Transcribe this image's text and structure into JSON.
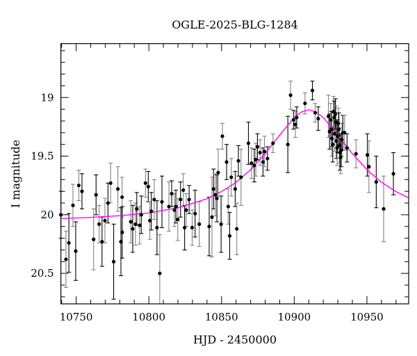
{
  "chart_data": {
    "type": "scatter",
    "title": "OGLE-2025-BLG-1284",
    "xlabel": "HJD - 2450000",
    "ylabel": "I magnitude",
    "xlim": [
      10739.5,
      10978.7
    ],
    "ylim": [
      20.76,
      18.54
    ],
    "y_inverted": true,
    "x_ticks": [
      10750,
      10800,
      10850,
      10900,
      10950
    ],
    "x_tick_labels": [
      "10750",
      "10800",
      "10850",
      "10900",
      "10950"
    ],
    "y_ticks": [
      19,
      19.5,
      20,
      20.5
    ],
    "y_tick_labels": [
      "19",
      "19.5",
      "20",
      "20.5"
    ],
    "grid": false,
    "colors": {
      "points": "#000000",
      "errorbar_a": "#000000",
      "errorbar_b": "#808080",
      "model": "#ff00ff"
    },
    "points": {
      "x": [
        10739.5,
        10743,
        10745,
        10747.8,
        10749.7,
        10751.8,
        10754,
        10762,
        10763.7,
        10765.8,
        10767.8,
        10769.8,
        10771.9,
        10773.7,
        10775.8,
        10778.7,
        10780.8,
        10781.6,
        10781.7,
        10787.6,
        10788.9,
        10790.8,
        10791.7,
        10793.6,
        10794.8,
        10797.7,
        10799.6,
        10800.7,
        10801.7,
        10803.7,
        10805.6,
        10807.5,
        10809,
        10813.8,
        10815.7,
        10817.6,
        10818.6,
        10819.9,
        10821.8,
        10823.7,
        10824.6,
        10825.7,
        10827.7,
        10829.8,
        10831.8,
        10834.7,
        10841.5,
        10843.4,
        10844.5,
        10845.7,
        10846.8,
        10847.7,
        10849.7,
        10850.6,
        10853.5,
        10854.6,
        10855.6,
        10856.7,
        10859.4,
        10860.5,
        10861.6,
        10863.4,
        10868.5,
        10870.6,
        10872.5,
        10873.6,
        10874.7,
        10876.5,
        10878.5,
        10879.5,
        10881.6,
        10885.4,
        10895.6,
        10897.5,
        10899.5,
        10900.7,
        10901.7,
        10907.4,
        10912.5,
        10914.4,
        10916.5,
        10923.5,
        10924.3,
        10925.1,
        10925.6,
        10925.9,
        10926.5,
        10927,
        10927.5,
        10927.8,
        10928.3,
        10928.7,
        10929,
        10929.5,
        10929.8,
        10930.3,
        10930.7,
        10931.1,
        10931.4,
        10931.9,
        10932.3,
        10932.8,
        10933.4,
        10934.6,
        10936.3,
        10942.5,
        10950.3,
        10951.4,
        10956.4,
        10961.5,
        10968.2
      ],
      "y": [
        20.0,
        20.38,
        20.24,
        19.92,
        20.31,
        19.75,
        19.8,
        20.21,
        19.83,
        20.08,
        20.23,
        20.05,
        19.9,
        19.73,
        20.4,
        19.78,
        20.23,
        19.85,
        20.15,
        20.06,
        20.12,
        20.08,
        19.95,
        20.09,
        20.0,
        19.73,
        19.76,
        20.05,
        19.97,
        19.87,
        20.11,
        20.5,
        19.89,
        19.93,
        19.82,
        19.96,
        19.93,
        20.04,
        19.87,
        19.79,
        20.11,
        19.96,
        19.87,
        20.11,
        19.99,
        20.08,
        20.1,
        20.02,
        19.78,
        19.83,
        19.86,
        19.64,
        20.08,
        19.33,
        19.55,
        19.93,
        20.18,
        19.68,
        19.78,
        20.12,
        19.54,
        19.68,
        19.39,
        19.56,
        19.58,
        19.53,
        19.42,
        19.47,
        19.55,
        19.46,
        19.52,
        19.39,
        19.4,
        18.98,
        19.19,
        19.23,
        19.17,
        19.05,
        18.94,
        19.13,
        19.18,
        19.16,
        19.29,
        19.19,
        19.27,
        19.35,
        19.4,
        19.12,
        19.17,
        19.31,
        19.14,
        19.21,
        19.37,
        19.43,
        19.33,
        19.22,
        19.27,
        19.41,
        19.47,
        19.51,
        19.45,
        19.36,
        19.3,
        19.3,
        19.43,
        19.48,
        19.49,
        19.59,
        19.72,
        19.95,
        19.65
      ],
      "err": [
        0.2,
        0.24,
        0.25,
        0.18,
        0.25,
        0.13,
        0.15,
        0.26,
        0.17,
        0.16,
        0.21,
        0.19,
        0.17,
        0.17,
        0.32,
        0.19,
        0.29,
        0.17,
        0.22,
        0.18,
        0.2,
        0.18,
        0.14,
        0.16,
        0.16,
        0.12,
        0.13,
        0.16,
        0.16,
        0.17,
        0.23,
        0.33,
        0.22,
        0.21,
        0.11,
        0.14,
        0.14,
        0.18,
        0.15,
        0.14,
        0.19,
        0.14,
        0.12,
        0.15,
        0.2,
        0.19,
        0.25,
        0.34,
        0.17,
        0.18,
        0.2,
        0.2,
        0.24,
        0.11,
        0.15,
        0.15,
        0.2,
        0.16,
        0.15,
        0.22,
        0.13,
        0.24,
        0.18,
        0.13,
        0.14,
        0.14,
        0.11,
        0.11,
        0.12,
        0.13,
        0.1,
        0.08,
        0.24,
        0.12,
        0.08,
        0.11,
        0.09,
        0.09,
        0.08,
        0.08,
        0.1,
        0.18,
        0.15,
        0.14,
        0.15,
        0.15,
        0.15,
        0.13,
        0.14,
        0.15,
        0.13,
        0.14,
        0.15,
        0.15,
        0.14,
        0.13,
        0.14,
        0.15,
        0.15,
        0.14,
        0.14,
        0.14,
        0.15,
        0.15,
        0.12,
        0.12,
        0.18,
        0.22,
        0.22,
        0.28,
        0.18
      ]
    },
    "model": {
      "x": [
        10740,
        10760,
        10780,
        10800,
        10820,
        10840,
        10850,
        10860,
        10870,
        10880,
        10890,
        10900,
        10905,
        10910,
        10915,
        10920,
        10930,
        10940,
        10950,
        10960,
        10970,
        10979
      ],
      "y": [
        20.032,
        20.023,
        20.008,
        19.985,
        19.941,
        19.864,
        19.802,
        19.723,
        19.616,
        19.479,
        19.32,
        19.171,
        19.123,
        19.104,
        19.123,
        19.171,
        19.32,
        19.479,
        19.616,
        19.723,
        19.802,
        19.858
      ]
    }
  }
}
